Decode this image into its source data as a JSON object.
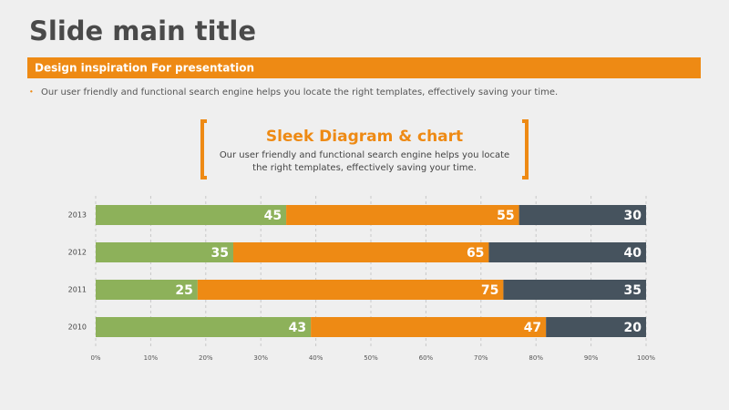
{
  "slide": {
    "title": "Slide main title",
    "banner": "Design inspiration For presentation",
    "bullet": "Our user friendly and functional search engine helps you locate the right templates, effectively saving your time."
  },
  "chart_data": {
    "type": "bar",
    "orientation": "horizontal",
    "stacking": "percent",
    "title": "Sleek Diagram & chart",
    "subtitle": [
      "Our user friendly and functional search engine helps you locate",
      "the right templates, effectively saving your time."
    ],
    "categories": [
      "2010",
      "2011",
      "2012",
      "2013"
    ],
    "series": [
      {
        "color": "#8db15a",
        "values": [
          43,
          25,
          35,
          45
        ]
      },
      {
        "color": "#ee8a14",
        "values": [
          47,
          75,
          65,
          55
        ]
      },
      {
        "color": "#46535e",
        "values": [
          20,
          35,
          40,
          30
        ]
      }
    ],
    "xlim": [
      0,
      100
    ],
    "xticks": [
      {
        "value": 0,
        "label": "0%"
      },
      {
        "value": 10,
        "label": "10%"
      },
      {
        "value": 20,
        "label": "20%"
      },
      {
        "value": 30,
        "label": "30%"
      },
      {
        "value": 40,
        "label": "40%"
      },
      {
        "value": 50,
        "label": "50%"
      },
      {
        "value": 60,
        "label": "60%"
      },
      {
        "value": 70,
        "label": "70%"
      },
      {
        "value": 80,
        "label": "80%"
      },
      {
        "value": 90,
        "label": "90%"
      },
      {
        "value": 100,
        "label": "100%"
      }
    ],
    "grid": true
  }
}
